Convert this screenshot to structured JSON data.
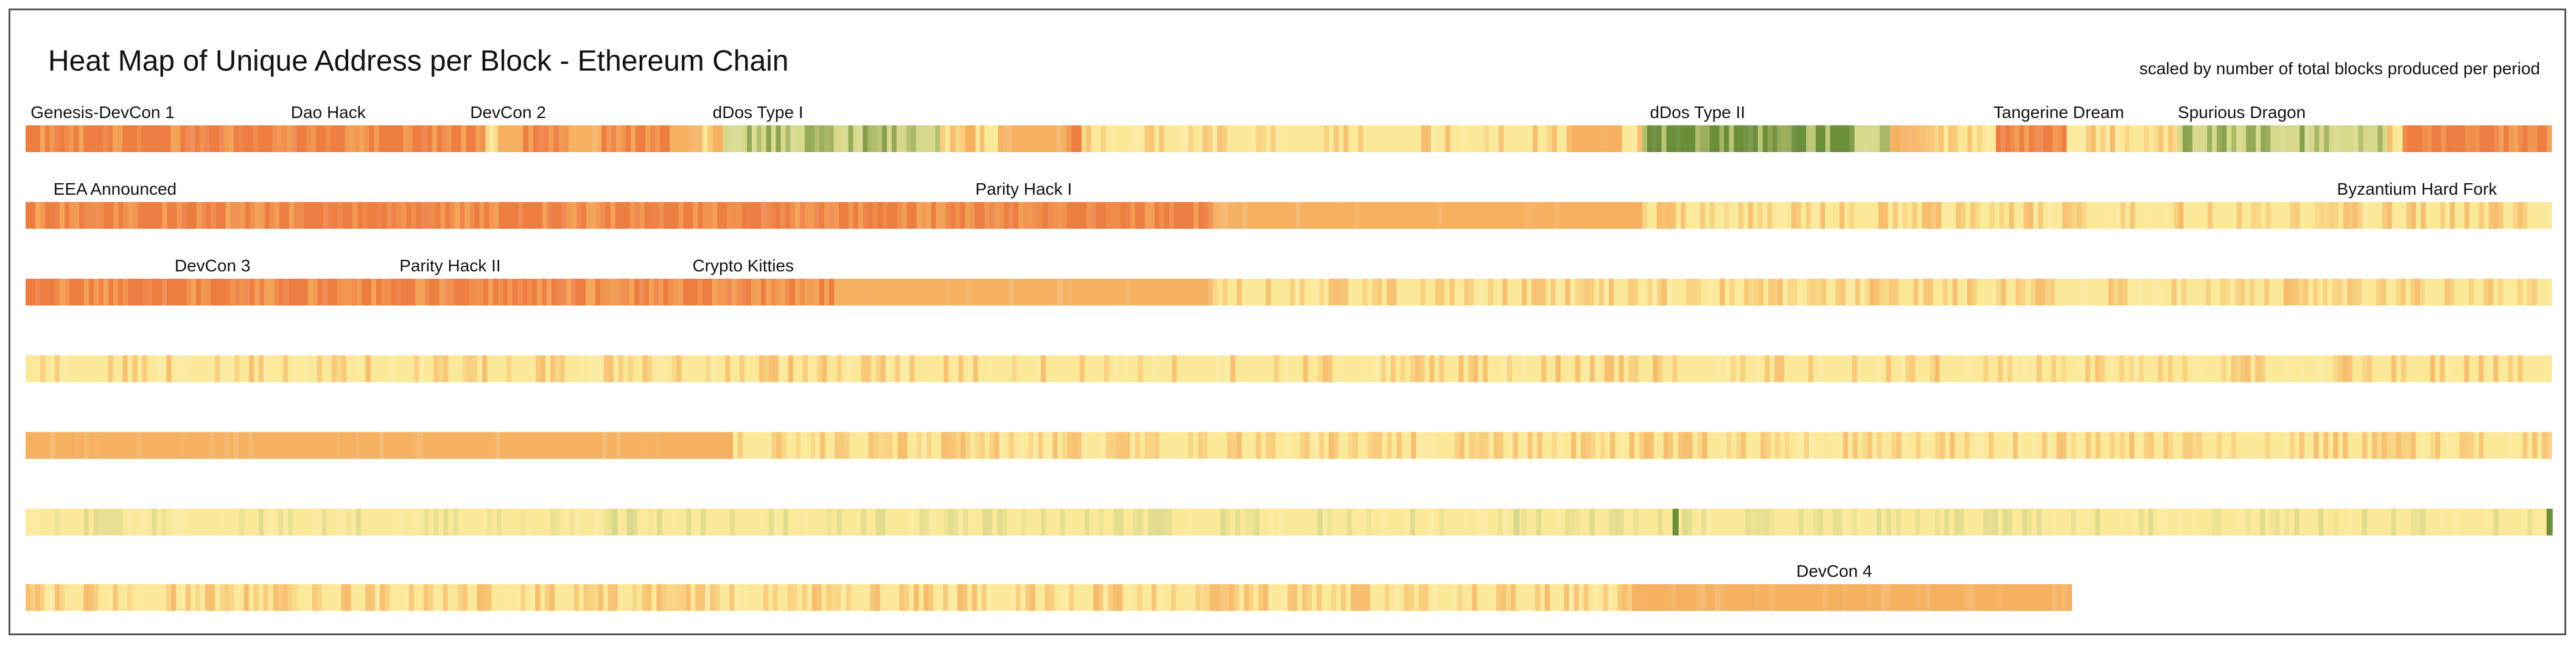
{
  "chart_data": {
    "type": "heatmap",
    "title": "Heat Map of Unique Address per Block - Ethereum Chain",
    "subtitle": "scaled by number of total blocks produced per period",
    "color_scale": {
      "green": "#6b8e3a",
      "yellow_green": "#d7d88a",
      "light_yellow": "#fbe898",
      "orange": "#f5b060",
      "deep_orange": "#ee7d42"
    },
    "rows": [
      {
        "label_row": 1,
        "segments": [
          [
            0.0,
            0.182,
            "deep_orange"
          ],
          [
            0.182,
            0.187,
            "light_yellow"
          ],
          [
            0.187,
            0.197,
            "orange"
          ],
          [
            0.197,
            0.215,
            "deep_orange"
          ],
          [
            0.215,
            0.228,
            "orange"
          ],
          [
            0.228,
            0.255,
            "deep_orange"
          ],
          [
            0.255,
            0.268,
            "orange"
          ],
          [
            0.268,
            0.272,
            "light_yellow"
          ],
          [
            0.272,
            0.276,
            "orange"
          ],
          [
            0.276,
            0.362,
            "yellow_green"
          ],
          [
            0.362,
            0.372,
            "light_yellow"
          ],
          [
            0.372,
            0.376,
            "orange"
          ],
          [
            0.376,
            0.385,
            "light_yellow"
          ],
          [
            0.385,
            0.412,
            "orange"
          ],
          [
            0.412,
            0.418,
            "deep_orange"
          ],
          [
            0.418,
            0.612,
            "light_yellow"
          ],
          [
            0.612,
            0.632,
            "orange"
          ],
          [
            0.632,
            0.64,
            "light_yellow"
          ],
          [
            0.64,
            0.722,
            "green"
          ],
          [
            0.722,
            0.738,
            "yellow_green"
          ],
          [
            0.738,
            0.748,
            "orange"
          ],
          [
            0.748,
            0.78,
            "light_yellow"
          ],
          [
            0.78,
            0.808,
            "deep_orange"
          ],
          [
            0.808,
            0.852,
            "light_yellow"
          ],
          [
            0.852,
            0.935,
            "yellow_green"
          ],
          [
            0.935,
            0.941,
            "light_yellow"
          ],
          [
            0.941,
            1.0,
            "deep_orange"
          ]
        ],
        "noise": 0.35
      },
      {
        "label_row": 2,
        "segments": [
          [
            0.0,
            0.17,
            "deep_orange"
          ],
          [
            0.17,
            0.47,
            "deep_orange"
          ],
          [
            0.47,
            0.64,
            "orange"
          ],
          [
            0.64,
            0.72,
            "light_yellow"
          ],
          [
            0.72,
            1.0,
            "light_yellow"
          ]
        ],
        "noise": 0.45,
        "accent": "orange"
      },
      {
        "label_row": 3,
        "segments": [
          [
            0.0,
            0.32,
            "deep_orange"
          ],
          [
            0.32,
            0.47,
            "orange"
          ],
          [
            0.47,
            0.6,
            "light_yellow"
          ],
          [
            0.6,
            0.73,
            "light_yellow"
          ],
          [
            0.73,
            1.0,
            "light_yellow"
          ]
        ],
        "noise": 0.4,
        "accent": "orange"
      },
      {
        "label_row": 4,
        "segments": [
          [
            0.0,
            1.0,
            "light_yellow"
          ]
        ],
        "noise": 0.3,
        "accent": "orange"
      },
      {
        "label_row": 5,
        "segments": [
          [
            0.0,
            0.28,
            "orange"
          ],
          [
            0.28,
            0.56,
            "light_yellow"
          ],
          [
            0.56,
            1.0,
            "light_yellow"
          ]
        ],
        "noise": 0.45,
        "accent": "orange"
      },
      {
        "label_row": 6,
        "segments": [
          [
            0.0,
            1.0,
            "light_yellow"
          ]
        ],
        "noise": 0.25,
        "accent": "yellow_green",
        "spikes": [
          [
            0.232,
            "yellow_green"
          ],
          [
            0.238,
            "yellow_green"
          ],
          [
            0.589,
            "yellow_green"
          ],
          [
            0.652,
            "green"
          ],
          [
            0.998,
            "green"
          ]
        ]
      },
      {
        "label_row": 7,
        "segments": [
          [
            0.0,
            0.636,
            "light_yellow"
          ],
          [
            0.636,
            0.81,
            "orange"
          ]
        ],
        "noise": 0.45,
        "accent": "orange"
      }
    ],
    "annotations": [
      {
        "row": 1,
        "at": 0.002,
        "text": "Genesis-DevCon 1"
      },
      {
        "row": 1,
        "at": 0.105,
        "text": "Dao Hack"
      },
      {
        "row": 1,
        "at": 0.176,
        "text": "DevCon 2"
      },
      {
        "row": 1,
        "at": 0.272,
        "text": "dDos Type I"
      },
      {
        "row": 1,
        "at": 0.643,
        "text": "dDos Type II"
      },
      {
        "row": 1,
        "at": 0.779,
        "text": "Tangerine Dream"
      },
      {
        "row": 1,
        "at": 0.852,
        "text": "Spurious Dragon"
      },
      {
        "row": 2,
        "at": 0.011,
        "text": "EEA Announced"
      },
      {
        "row": 2,
        "at": 0.376,
        "text": "Parity Hack I"
      },
      {
        "row": 2,
        "at": 0.915,
        "text": "Byzantium Hard Fork"
      },
      {
        "row": 3,
        "at": 0.059,
        "text": "DevCon 3"
      },
      {
        "row": 3,
        "at": 0.148,
        "text": "Parity Hack II"
      },
      {
        "row": 3,
        "at": 0.264,
        "text": "Crypto Kitties"
      },
      {
        "row": 7,
        "at": 0.701,
        "text": "DevCon 4"
      }
    ]
  }
}
